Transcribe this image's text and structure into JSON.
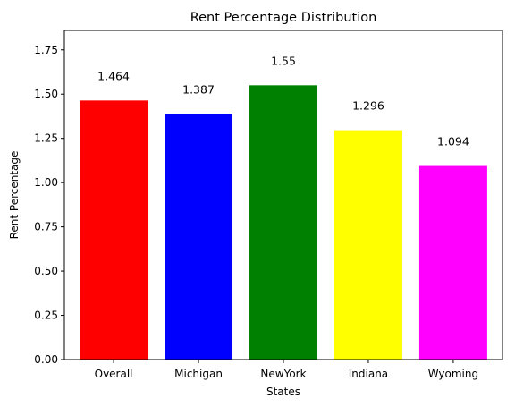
{
  "chart_data": {
    "type": "bar",
    "title": "Rent Percentage Distribution",
    "xlabel": "States",
    "ylabel": "Rent Percentage",
    "categories": [
      "Overall",
      "Michigan",
      "NewYork",
      "Indiana",
      "Wyoming"
    ],
    "values": [
      1.464,
      1.387,
      1.55,
      1.296,
      1.094
    ],
    "data_labels": [
      "1.464",
      "1.387",
      "1.55",
      "1.296",
      "1.094"
    ],
    "colors": [
      "#ff0000",
      "#0000ff",
      "#008000",
      "#ffff00",
      "#ff00ff"
    ],
    "ylim": [
      0,
      1.86
    ],
    "yticks": [
      0,
      0.25,
      0.5,
      0.75,
      1.0,
      1.25,
      1.5,
      1.75
    ],
    "ytick_labels": [
      "0.00",
      "0.25",
      "0.50",
      "0.75",
      "1.00",
      "1.25",
      "1.50",
      "1.75"
    ],
    "grid": false,
    "legend": "none"
  }
}
